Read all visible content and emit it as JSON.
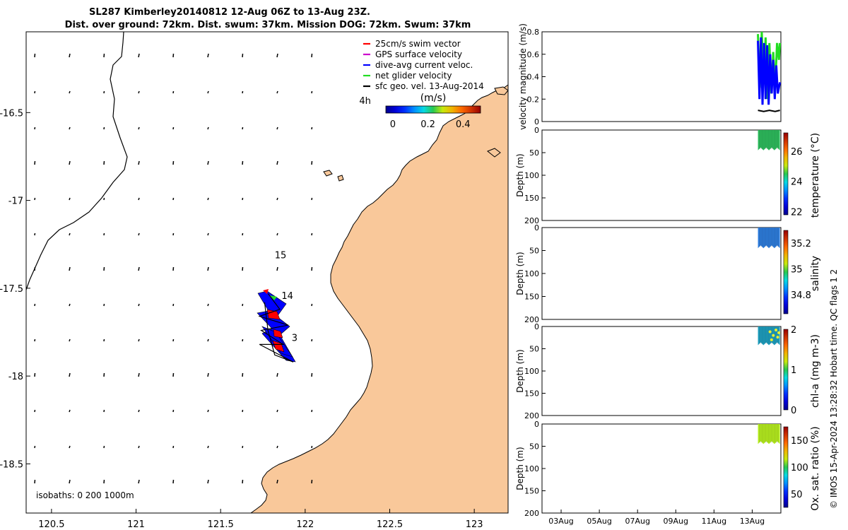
{
  "title": {
    "line1": "SL287 Kimberley20140812 12-Aug 06Z to 13-Aug 23Z.",
    "line2": "Dist. over ground: 72km. Dist. swum: 37km. Mission DOG: 72km. Swum: 37km"
  },
  "credit": "© IMOS 15-Apr-2024 13:28:32 Hobart time. QC flags 1  2",
  "colors": {
    "land": "#f9c89a",
    "track_blue": "#0000ff",
    "track_red": "#ff0000",
    "net_green": "#22dd22",
    "temperature_fill": "#2fbf5f",
    "salinity_fill": "#2f7fe0",
    "chl_fill": "#1fa0c0",
    "oxygen_fill": "#b8f020"
  },
  "chart_data": [
    {
      "type": "map",
      "id": "track-map",
      "x_ticks": [
        "120.5",
        "121",
        "121.5",
        "122",
        "122.5",
        "123"
      ],
      "x_tick_values": [
        120.5,
        121,
        121.5,
        122,
        122.5,
        123
      ],
      "y_ticks": [
        "-16.5",
        "-17",
        "-17.5",
        "-18",
        "-18.5"
      ],
      "y_tick_values": [
        -16.5,
        -17,
        -17.5,
        -18,
        -18.5
      ],
      "xlim": [
        120.35,
        123.2
      ],
      "ylim": [
        -18.78,
        -16.04
      ],
      "legend": [
        {
          "label": "25cm/s swim vector",
          "color": "#ff0000"
        },
        {
          "label": "GPS surface velocity",
          "color": "#cc00cc"
        },
        {
          "label": "dive-avg current veloc.",
          "color": "#0000ff"
        },
        {
          "label": "net glider velocity",
          "color": "#22dd22"
        },
        {
          "label": "sfc geo. vel. 13-Aug-2014",
          "color": "#000000"
        }
      ],
      "legend_placement": "top-right",
      "colorbar_title": "(m/s)",
      "colorbar_ticks": [
        "0",
        "0.2",
        "0.4"
      ],
      "colorbar_tick_values": [
        0,
        0.2,
        0.4
      ],
      "colorbar_range": [
        -0.04,
        0.5
      ],
      "annotations": [
        {
          "text": "4h",
          "lon": 122.32,
          "lat": -16.45
        },
        {
          "text": "15",
          "lon": 121.82,
          "lat": -17.33
        },
        {
          "text": "14",
          "lon": 121.86,
          "lat": -17.56
        },
        {
          "text": "3",
          "lon": 121.92,
          "lat": -17.8
        }
      ],
      "isobath_label": "isobaths: 0   200  1000m",
      "track_points": [
        [
          121.78,
          -17.53
        ],
        [
          121.85,
          -17.62
        ],
        [
          121.73,
          -17.66
        ],
        [
          121.9,
          -17.71
        ],
        [
          121.74,
          -17.74
        ],
        [
          121.87,
          -17.82
        ],
        [
          121.73,
          -17.82
        ],
        [
          121.93,
          -17.92
        ],
        [
          121.82,
          -17.88
        ],
        [
          121.78,
          -17.74
        ],
        [
          121.76,
          -17.58
        ]
      ]
    },
    {
      "type": "line",
      "id": "velocity-panel",
      "ylabel": "velocity magnitude (m/s)",
      "ylim": [
        0,
        0.8
      ],
      "y_ticks": [
        "0",
        "0.2",
        "0.4",
        "0.6",
        "0.8"
      ],
      "y_tick_values": [
        0,
        0.2,
        0.4,
        0.6,
        0.8
      ],
      "xlim": [
        0,
        12.5
      ],
      "series": [
        {
          "color": "#22dd22",
          "x": [
            11.3,
            11.4,
            11.5,
            11.6,
            11.7,
            11.8,
            11.9,
            12.0,
            12.1,
            12.2,
            12.3,
            12.4,
            12.45
          ],
          "values": [
            0.78,
            0.3,
            0.8,
            0.35,
            0.75,
            0.2,
            0.7,
            0.25,
            0.62,
            0.3,
            0.7,
            0.55,
            0.7
          ]
        },
        {
          "color": "#0000ff",
          "x": [
            11.3,
            11.38,
            11.46,
            11.54,
            11.62,
            11.7,
            11.78,
            11.86,
            11.94,
            12.02,
            12.1,
            12.18,
            12.26,
            12.34,
            12.45
          ],
          "values": [
            0.72,
            0.2,
            0.75,
            0.15,
            0.7,
            0.2,
            0.68,
            0.15,
            0.6,
            0.25,
            0.55,
            0.2,
            0.5,
            0.25,
            0.35
          ]
        },
        {
          "color": "#000000",
          "x": [
            11.3,
            11.6,
            11.9,
            12.2,
            12.45
          ],
          "values": [
            0.1,
            0.09,
            0.1,
            0.09,
            0.1
          ]
        }
      ]
    },
    {
      "type": "heatmap",
      "id": "temperature-panel",
      "ylabel": "Depth (m)",
      "ylim": [
        0,
        200
      ],
      "y_ticks": [
        "0",
        "50",
        "100",
        "150",
        "200"
      ],
      "y_tick_values": [
        0,
        50,
        100,
        150,
        200
      ],
      "x_data_range": [
        11.3,
        12.45
      ],
      "depth_range": [
        0,
        45
      ],
      "colorbar_label": "temperature (°C)",
      "colorbar_ticks": [
        "22",
        "24",
        "26"
      ],
      "colorbar_tick_values": [
        22,
        24,
        26
      ],
      "colorbar_range": [
        21.8,
        27.2
      ],
      "fill_color": "#2fbf5f"
    },
    {
      "type": "heatmap",
      "id": "salinity-panel",
      "ylabel": "Depth (m)",
      "ylim": [
        0,
        200
      ],
      "y_ticks": [
        "0",
        "50",
        "100",
        "150",
        "200"
      ],
      "y_tick_values": [
        0,
        50,
        100,
        150,
        200
      ],
      "x_data_range": [
        11.3,
        12.45
      ],
      "depth_range": [
        0,
        45
      ],
      "colorbar_label": "salinity",
      "colorbar_ticks": [
        "34.8",
        "35",
        "35.2"
      ],
      "colorbar_tick_values": [
        34.8,
        35,
        35.2
      ],
      "colorbar_range": [
        34.65,
        35.3
      ],
      "fill_color": "#2f7fe0"
    },
    {
      "type": "heatmap",
      "id": "chl-panel",
      "ylabel": "Depth (m)",
      "ylim": [
        0,
        200
      ],
      "y_ticks": [
        "0",
        "50",
        "100",
        "150",
        "200"
      ],
      "y_tick_values": [
        0,
        50,
        100,
        150,
        200
      ],
      "x_data_range": [
        11.3,
        12.45
      ],
      "depth_range": [
        0,
        42
      ],
      "colorbar_label": "chl-a (mg m-3)",
      "colorbar_ticks": [
        "0",
        "1",
        "2"
      ],
      "colorbar_tick_values": [
        0,
        1,
        2
      ],
      "colorbar_range": [
        0,
        2
      ],
      "fill_color": "#1fa0c0"
    },
    {
      "type": "heatmap",
      "id": "oxygen-panel",
      "ylabel": "Depth (m)",
      "ylim": [
        0,
        200
      ],
      "y_ticks": [
        "0",
        "50",
        "100",
        "150",
        "200"
      ],
      "y_tick_values": [
        0,
        50,
        100,
        150,
        200
      ],
      "x_data_range": [
        11.3,
        12.45
      ],
      "depth_range": [
        0,
        45
      ],
      "colorbar_label": "Ox. sat. ratio (%)",
      "colorbar_ticks": [
        "50",
        "100",
        "150"
      ],
      "colorbar_tick_values": [
        50,
        100,
        150
      ],
      "colorbar_range": [
        25,
        175
      ],
      "fill_color": "#b8f020",
      "x_ticks": [
        "03Aug",
        "05Aug",
        "07Aug",
        "09Aug",
        "11Aug",
        "13Aug"
      ],
      "x_tick_values": [
        1,
        3,
        5,
        7,
        9,
        11
      ]
    }
  ]
}
